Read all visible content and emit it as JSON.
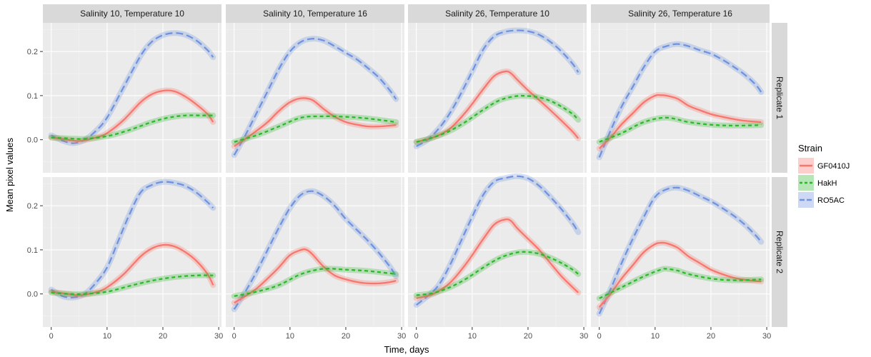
{
  "chart_data": {
    "type": "line",
    "xlabel": "Time, days",
    "ylabel": "Mean pixel values",
    "xlim": [
      -1.5,
      30.5
    ],
    "ylim": [
      -0.075,
      0.265
    ],
    "x_ticks": [
      0,
      10,
      20,
      30
    ],
    "x_tick_labels": [
      "0",
      "10",
      "20",
      "30"
    ],
    "y_ticks": [
      0.0,
      0.1,
      0.2
    ],
    "y_tick_labels": [
      "0.0",
      "0.1",
      "0.2"
    ],
    "grid": true,
    "legend": {
      "title": "Strain",
      "placement": "right",
      "entries": [
        "GF0410J",
        "HakH",
        "RO5AC"
      ]
    },
    "series_styles": [
      {
        "name": "GF0410J",
        "color": "#F8766D",
        "dash": "solid"
      },
      {
        "name": "HakH",
        "color": "#2DB82D",
        "dash": "dashed"
      },
      {
        "name": "RO5AC",
        "color": "#6F93E0",
        "dash": "longdash"
      }
    ],
    "columns": [
      "Salinity 10, Temperature 10",
      "Salinity 10, Temperature 16",
      "Salinity 26, Temperature 10",
      "Salinity 26, Temperature 16"
    ],
    "rows": [
      "Replicate 1",
      "Replicate 2"
    ],
    "panels": [
      {
        "column": "Salinity 10, Temperature 10",
        "row": "Replicate 1",
        "series": [
          {
            "name": "GF0410J",
            "x": [
              0,
              3,
              5,
              8,
              10,
              13,
              16,
              18,
              20,
              22,
              24,
              26,
              28,
              29
            ],
            "y": [
              0.005,
              0.0,
              -0.003,
              0.005,
              0.015,
              0.045,
              0.085,
              0.103,
              0.111,
              0.11,
              0.098,
              0.08,
              0.058,
              0.04
            ]
          },
          {
            "name": "HakH",
            "x": [
              0,
              3,
              6,
              10,
              14,
              18,
              21,
              24,
              27,
              29
            ],
            "y": [
              0.005,
              0.003,
              0.002,
              0.008,
              0.022,
              0.04,
              0.05,
              0.055,
              0.055,
              0.055
            ]
          },
          {
            "name": "RO5AC",
            "x": [
              0,
              2,
              4,
              6,
              8,
              10,
              13,
              16,
              18,
              20,
              22,
              24,
              26,
              28,
              29
            ],
            "y": [
              0.01,
              -0.002,
              -0.008,
              0.0,
              0.02,
              0.05,
              0.12,
              0.19,
              0.222,
              0.237,
              0.242,
              0.238,
              0.225,
              0.203,
              0.187
            ]
          }
        ]
      },
      {
        "column": "Salinity 10, Temperature 16",
        "row": "Replicate 1",
        "series": [
          {
            "name": "GF0410J",
            "x": [
              0,
              2,
              4,
              6,
              8,
              10,
              12,
              14,
              16,
              18,
              20,
              22,
              24,
              26,
              28,
              29
            ],
            "y": [
              -0.015,
              0.002,
              0.02,
              0.04,
              0.065,
              0.085,
              0.094,
              0.09,
              0.07,
              0.052,
              0.04,
              0.034,
              0.03,
              0.03,
              0.032,
              0.033
            ]
          },
          {
            "name": "HakH",
            "x": [
              0,
              4,
              8,
              12,
              16,
              20,
              24,
              29
            ],
            "y": [
              -0.005,
              0.01,
              0.03,
              0.05,
              0.053,
              0.052,
              0.048,
              0.04
            ]
          },
          {
            "name": "RO5AC",
            "x": [
              0,
              2,
              4,
              6,
              8,
              10,
              12,
              14,
              16,
              18,
              20,
              22,
              24,
              26,
              28,
              29
            ],
            "y": [
              -0.035,
              0.01,
              0.06,
              0.11,
              0.16,
              0.2,
              0.222,
              0.229,
              0.225,
              0.212,
              0.197,
              0.182,
              0.162,
              0.14,
              0.11,
              0.092
            ]
          }
        ]
      },
      {
        "column": "Salinity 26, Temperature 10",
        "row": "Replicate 1",
        "series": [
          {
            "name": "GF0410J",
            "x": [
              0,
              3,
              6,
              9,
              12,
              14,
              16,
              17,
              18,
              20,
              22,
              24,
              26,
              28,
              29
            ],
            "y": [
              -0.005,
              0.005,
              0.025,
              0.065,
              0.115,
              0.145,
              0.155,
              0.15,
              0.137,
              0.112,
              0.09,
              0.067,
              0.043,
              0.018,
              0.003
            ]
          },
          {
            "name": "HakH",
            "x": [
              0,
              3,
              6,
              9,
              12,
              15,
              18,
              20,
              22,
              24,
              26,
              28,
              29
            ],
            "y": [
              -0.005,
              0.005,
              0.02,
              0.042,
              0.068,
              0.09,
              0.099,
              0.099,
              0.096,
              0.088,
              0.075,
              0.058,
              0.045
            ]
          },
          {
            "name": "RO5AC",
            "x": [
              0,
              2,
              4,
              6,
              8,
              10,
              12,
              14,
              16,
              18,
              20,
              22,
              24,
              26,
              28,
              29
            ],
            "y": [
              -0.015,
              0.0,
              0.025,
              0.06,
              0.105,
              0.155,
              0.205,
              0.235,
              0.245,
              0.248,
              0.246,
              0.238,
              0.222,
              0.2,
              0.172,
              0.153
            ]
          }
        ]
      },
      {
        "column": "Salinity 26, Temperature 16",
        "row": "Replicate 1",
        "series": [
          {
            "name": "GF0410J",
            "x": [
              0,
              2,
              4,
              6,
              8,
              10,
              11,
              12,
              14,
              16,
              18,
              20,
              22,
              24,
              26,
              29
            ],
            "y": [
              -0.02,
              0.005,
              0.035,
              0.06,
              0.085,
              0.1,
              0.101,
              0.1,
              0.093,
              0.077,
              0.067,
              0.058,
              0.052,
              0.047,
              0.043,
              0.04
            ]
          },
          {
            "name": "HakH",
            "x": [
              0,
              4,
              8,
              12,
              16,
              20,
              24,
              29
            ],
            "y": [
              -0.005,
              0.015,
              0.04,
              0.05,
              0.04,
              0.034,
              0.032,
              0.033
            ]
          },
          {
            "name": "RO5AC",
            "x": [
              0,
              2,
              4,
              6,
              8,
              10,
              12,
              14,
              16,
              18,
              20,
              22,
              24,
              26,
              28,
              29
            ],
            "y": [
              -0.04,
              0.02,
              0.075,
              0.12,
              0.165,
              0.2,
              0.212,
              0.217,
              0.212,
              0.203,
              0.195,
              0.182,
              0.166,
              0.148,
              0.125,
              0.108
            ]
          }
        ]
      },
      {
        "column": "Salinity 10, Temperature 10",
        "row": "Replicate 2",
        "series": [
          {
            "name": "GF0410J",
            "x": [
              0,
              3,
              5,
              8,
              10,
              13,
              16,
              18,
              20,
              22,
              24,
              26,
              28,
              29
            ],
            "y": [
              0.005,
              0.0,
              -0.003,
              0.004,
              0.015,
              0.045,
              0.085,
              0.103,
              0.111,
              0.108,
              0.095,
              0.075,
              0.045,
              0.02
            ]
          },
          {
            "name": "HakH",
            "x": [
              0,
              3,
              6,
              10,
              14,
              18,
              22,
              26,
              29
            ],
            "y": [
              0.003,
              0.0,
              0.0,
              0.005,
              0.018,
              0.03,
              0.038,
              0.042,
              0.042
            ]
          },
          {
            "name": "RO5AC",
            "x": [
              0,
              2,
              4,
              6,
              8,
              10,
              12,
              14,
              16,
              18,
              20,
              22,
              24,
              26,
              28,
              29
            ],
            "y": [
              0.01,
              -0.005,
              -0.008,
              0.0,
              0.025,
              0.06,
              0.12,
              0.18,
              0.23,
              0.247,
              0.254,
              0.252,
              0.245,
              0.23,
              0.208,
              0.195
            ]
          }
        ]
      },
      {
        "column": "Salinity 10, Temperature 16",
        "row": "Replicate 2",
        "series": [
          {
            "name": "GF0410J",
            "x": [
              0,
              2,
              4,
              6,
              8,
              10,
              12,
              13,
              14,
              16,
              18,
              20,
              22,
              24,
              26,
              28,
              29
            ],
            "y": [
              -0.02,
              -0.005,
              0.012,
              0.035,
              0.06,
              0.088,
              0.1,
              0.1,
              0.09,
              0.062,
              0.042,
              0.033,
              0.027,
              0.024,
              0.024,
              0.027,
              0.03
            ]
          },
          {
            "name": "HakH",
            "x": [
              0,
              4,
              8,
              12,
              16,
              20,
              24,
              29
            ],
            "y": [
              -0.005,
              0.005,
              0.02,
              0.045,
              0.057,
              0.055,
              0.052,
              0.045
            ]
          },
          {
            "name": "RO5AC",
            "x": [
              0,
              2,
              4,
              6,
              8,
              10,
              12,
              14,
              16,
              18,
              20,
              22,
              24,
              26,
              28,
              29
            ],
            "y": [
              -0.035,
              0.005,
              0.05,
              0.1,
              0.15,
              0.195,
              0.225,
              0.233,
              0.222,
              0.2,
              0.17,
              0.145,
              0.12,
              0.092,
              0.06,
              0.04
            ]
          }
        ]
      },
      {
        "column": "Salinity 26, Temperature 10",
        "row": "Replicate 2",
        "series": [
          {
            "name": "GF0410J",
            "x": [
              0,
              3,
              6,
              9,
              12,
              14,
              16,
              17,
              18,
              20,
              22,
              24,
              26,
              28,
              29
            ],
            "y": [
              -0.01,
              0.0,
              0.025,
              0.07,
              0.125,
              0.158,
              0.169,
              0.165,
              0.15,
              0.125,
              0.1,
              0.07,
              0.04,
              0.015,
              0.003
            ]
          },
          {
            "name": "HakH",
            "x": [
              0,
              3,
              6,
              9,
              12,
              15,
              18,
              20,
              22,
              24,
              26,
              28,
              29
            ],
            "y": [
              -0.003,
              0.002,
              0.015,
              0.035,
              0.06,
              0.082,
              0.094,
              0.095,
              0.091,
              0.082,
              0.07,
              0.055,
              0.045
            ]
          },
          {
            "name": "RO5AC",
            "x": [
              0,
              2,
              4,
              6,
              8,
              10,
              12,
              14,
              16,
              18,
              20,
              22,
              24,
              26,
              28,
              29
            ],
            "y": [
              -0.025,
              -0.005,
              0.02,
              0.065,
              0.12,
              0.175,
              0.225,
              0.255,
              0.263,
              0.267,
              0.262,
              0.245,
              0.22,
              0.192,
              0.16,
              0.14
            ]
          }
        ]
      },
      {
        "column": "Salinity 26, Temperature 16",
        "row": "Replicate 2",
        "series": [
          {
            "name": "GF0410J",
            "x": [
              0,
              2,
              4,
              6,
              8,
              10,
              11,
              12,
              14,
              16,
              18,
              20,
              22,
              24,
              26,
              29
            ],
            "y": [
              -0.03,
              0.0,
              0.035,
              0.065,
              0.095,
              0.113,
              0.116,
              0.115,
              0.105,
              0.085,
              0.07,
              0.055,
              0.045,
              0.037,
              0.032,
              0.028
            ]
          },
          {
            "name": "HakH",
            "x": [
              0,
              4,
              8,
              11,
              12,
              14,
              16,
              20,
              24,
              29
            ],
            "y": [
              -0.01,
              0.015,
              0.04,
              0.055,
              0.057,
              0.053,
              0.045,
              0.035,
              0.031,
              0.033
            ]
          },
          {
            "name": "RO5AC",
            "x": [
              0,
              2,
              4,
              6,
              8,
              10,
              12,
              14,
              16,
              18,
              20,
              22,
              24,
              26,
              28,
              29
            ],
            "y": [
              -0.045,
              0.01,
              0.07,
              0.125,
              0.175,
              0.22,
              0.237,
              0.241,
              0.234,
              0.222,
              0.21,
              0.195,
              0.178,
              0.158,
              0.133,
              0.118
            ]
          }
        ]
      }
    ]
  }
}
